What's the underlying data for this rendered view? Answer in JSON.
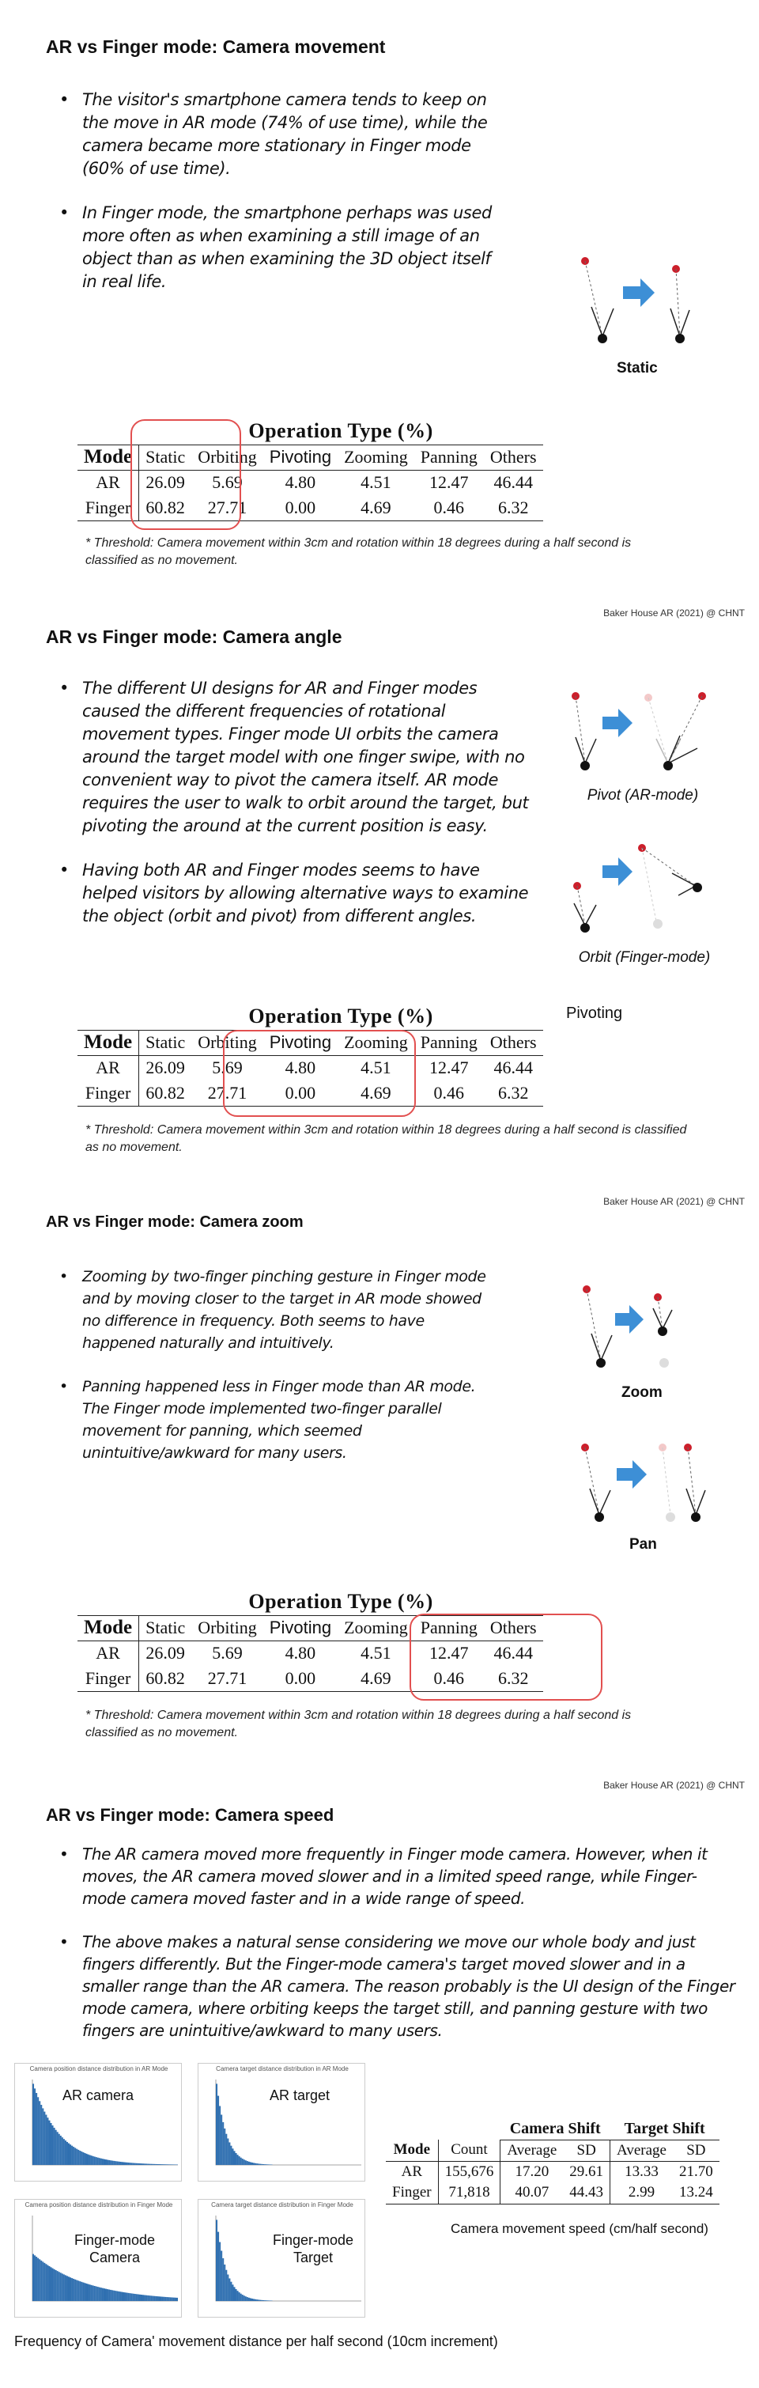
{
  "credit": "Baker House AR (2021) @ CHNT",
  "table": {
    "title": "Operation Type (%)",
    "headers": [
      "Mode",
      "Static",
      "Orbiting",
      "Pivoting",
      "Zooming",
      "Panning",
      "Others"
    ],
    "rows": [
      [
        "AR",
        "26.09",
        "5.69",
        "4.80",
        "4.51",
        "12.47",
        "46.44"
      ],
      [
        "Finger",
        "60.82",
        "27.71",
        "0.00",
        "4.69",
        "0.46",
        "6.32"
      ]
    ]
  },
  "note": "* Threshold: Camera movement within 3cm and rotation within 18 degrees during a half second is classified as no movement.",
  "slide1": {
    "title": "AR vs Finger mode: Camera movement",
    "bullets": [
      "The visitor's smartphone camera tends to keep on the move in AR mode (74% of use time), while the camera became more stationary in Finger mode (60% of use time).",
      "In Finger mode, the smartphone perhaps was used more often as when examining a still image of an object than as when examining the 3D object itself in real life."
    ],
    "diagram_label": "Static"
  },
  "slide2": {
    "title": "AR vs Finger mode: Camera angle",
    "bullets": [
      "The different UI designs for AR and Finger modes caused the different frequencies of rotational movement types. Finger mode UI orbits the camera around the target model with one finger swipe, with no convenient way to pivot the camera itself. AR mode requires the user to walk to orbit around the target, but pivoting the around at the current position is easy.",
      "Having both AR and Finger modes seems to have helped visitors by allowing alternative ways to examine the object (orbit and pivot) from different angles."
    ],
    "pivot_caption": "Pivot (AR-mode)",
    "orbit_caption": "Orbit (Finger-mode)",
    "pivoting_label": "Pivoting"
  },
  "slide3": {
    "title": "AR vs Finger mode: Camera zoom",
    "bullets": [
      "Zooming by two-finger pinching gesture in Finger mode and by moving closer to the target in AR mode showed no difference in frequency. Both seems to have happened naturally and intuitively.",
      "Panning happened less in Finger mode than AR mode. The Finger mode implemented two-finger parallel movement for panning, which seemed unintuitive/awkward for many users."
    ],
    "zoom_label": "Zoom",
    "pan_label": "Pan"
  },
  "slide4": {
    "title": "AR vs Finger mode: Camera speed",
    "bullets": [
      "The AR camera moved more frequently in Finger mode camera. However, when it moves, the AR camera moved slower and in a limited speed range, while Finger-mode camera moved faster and in a wide range of speed.",
      "The above makes a natural sense considering we move our whole body and just fingers differently. But the Finger-mode camera's target moved slower and in a smaller range than the AR camera. The reason probably is the UI design of the Finger mode camera, where orbiting keeps the target still, and panning gesture with two fingers are unintuitive/awkward to many users."
    ],
    "charts": [
      {
        "title": "Camera position distance distribution in AR Mode",
        "label": "AR camera"
      },
      {
        "title": "Camera target distance distribution in AR Mode",
        "label": "AR target"
      },
      {
        "title": "Camera position distance distribution in Finger Mode",
        "label": "Finger-mode Camera"
      },
      {
        "title": "Camera target distance distribution in Finger Mode",
        "label": "Finger-mode Target"
      }
    ],
    "chart_caption": "Frequency of Camera' movement distance per half second (10cm increment)",
    "speed_table": {
      "group1": "Camera Shift",
      "group2": "Target Shift",
      "headers": [
        "Mode",
        "Count",
        "Average",
        "SD",
        "Average",
        "SD"
      ],
      "rows": [
        [
          "AR",
          "155,676",
          "17.20",
          "29.61",
          "13.33",
          "21.70"
        ],
        [
          "Finger",
          "71,818",
          "40.07",
          "44.43",
          "2.99",
          "13.24"
        ]
      ]
    },
    "speed_caption": "Camera movement speed (cm/half second)"
  },
  "colors": {
    "highlight": "#e25050",
    "arrow": "#3d8fd6",
    "phone_dot": "#cc1f2b",
    "bar": "#2f6fb0"
  }
}
